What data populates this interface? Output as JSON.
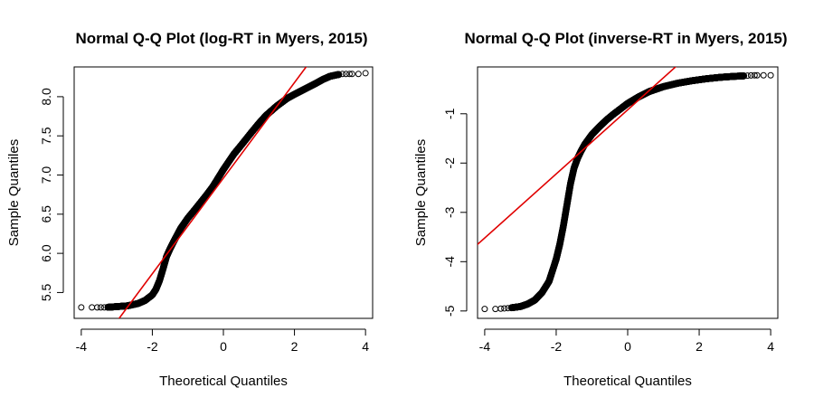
{
  "chart_data": [
    {
      "type": "scatter",
      "title": "Normal Q-Q Plot (log-RT in Myers, 2015)",
      "xlabel": "Theoretical Quantiles",
      "ylabel": "Sample Quantiles",
      "xlim": [
        -4.2,
        4.2
      ],
      "ylim": [
        5.17,
        8.38
      ],
      "xticks": [
        -4,
        -2,
        0,
        2,
        4
      ],
      "xtick_labels": [
        "-4",
        "-2",
        "0",
        "2",
        "4"
      ],
      "yticks": [
        5.5,
        6.0,
        6.5,
        7.0,
        7.5,
        8.0
      ],
      "ytick_labels": [
        "5.5",
        "6.0",
        "6.5",
        "7.0",
        "7.5",
        "8.0"
      ],
      "grid": false,
      "qq_line_color": "#e00000",
      "qq_line": {
        "intercept": 6.96,
        "slope": 0.61
      },
      "quantiles": {
        "x": [
          -4.0,
          -3.7,
          -3.5,
          -3.3,
          -3.0,
          -2.7,
          -2.4,
          -2.2,
          -2.0,
          -1.9,
          -1.8,
          -1.7,
          -1.6,
          -1.5,
          -1.4,
          -1.2,
          -1.0,
          -0.8,
          -0.5,
          -0.3,
          0.0,
          0.3,
          0.5,
          0.8,
          1.0,
          1.2,
          1.5,
          1.8,
          2.0,
          2.3,
          2.6,
          2.8,
          3.0,
          3.2,
          3.35,
          3.5,
          3.6,
          3.8,
          4.0
        ],
        "y": [
          5.31,
          5.31,
          5.31,
          5.31,
          5.32,
          5.33,
          5.36,
          5.4,
          5.47,
          5.54,
          5.65,
          5.8,
          5.96,
          6.06,
          6.15,
          6.32,
          6.45,
          6.56,
          6.73,
          6.85,
          7.07,
          7.27,
          7.38,
          7.55,
          7.66,
          7.76,
          7.88,
          7.98,
          8.03,
          8.1,
          8.17,
          8.22,
          8.26,
          8.28,
          8.29,
          8.29,
          8.29,
          8.29,
          8.3
        ]
      }
    },
    {
      "type": "scatter",
      "title": "Normal Q-Q Plot (inverse-RT in Myers, 2015)",
      "xlabel": "Theoretical Quantiles",
      "ylabel": "Sample Quantiles",
      "xlim": [
        -4.2,
        4.2
      ],
      "ylim": [
        -5.15,
        -0.05
      ],
      "xticks": [
        -4,
        -2,
        0,
        2,
        4
      ],
      "xtick_labels": [
        "-4",
        "-2",
        "0",
        "2",
        "4"
      ],
      "yticks": [
        -5,
        -4,
        -3,
        -2,
        -1
      ],
      "ytick_labels": [
        "-5",
        "-4",
        "-3",
        "-2",
        "-1"
      ],
      "grid": false,
      "qq_line_color": "#e00000",
      "qq_line": {
        "intercept": -0.92,
        "slope": 0.65
      },
      "quantiles": {
        "x": [
          -4.0,
          -3.7,
          -3.5,
          -3.3,
          -3.0,
          -2.8,
          -2.6,
          -2.4,
          -2.2,
          -2.0,
          -1.9,
          -1.8,
          -1.7,
          -1.6,
          -1.5,
          -1.4,
          -1.3,
          -1.2,
          -1.0,
          -0.8,
          -0.6,
          -0.4,
          -0.2,
          0.0,
          0.3,
          0.6,
          1.0,
          1.4,
          1.8,
          2.2,
          2.6,
          3.0,
          3.3,
          3.5,
          3.6,
          3.75,
          4.0
        ],
        "y": [
          -4.96,
          -4.96,
          -4.95,
          -4.94,
          -4.91,
          -4.86,
          -4.78,
          -4.63,
          -4.4,
          -3.95,
          -3.65,
          -3.28,
          -2.85,
          -2.42,
          -2.1,
          -1.9,
          -1.75,
          -1.62,
          -1.42,
          -1.27,
          -1.13,
          -1.01,
          -0.9,
          -0.79,
          -0.66,
          -0.55,
          -0.45,
          -0.38,
          -0.33,
          -0.29,
          -0.26,
          -0.24,
          -0.23,
          -0.22,
          -0.22,
          -0.22,
          -0.22
        ]
      }
    }
  ]
}
